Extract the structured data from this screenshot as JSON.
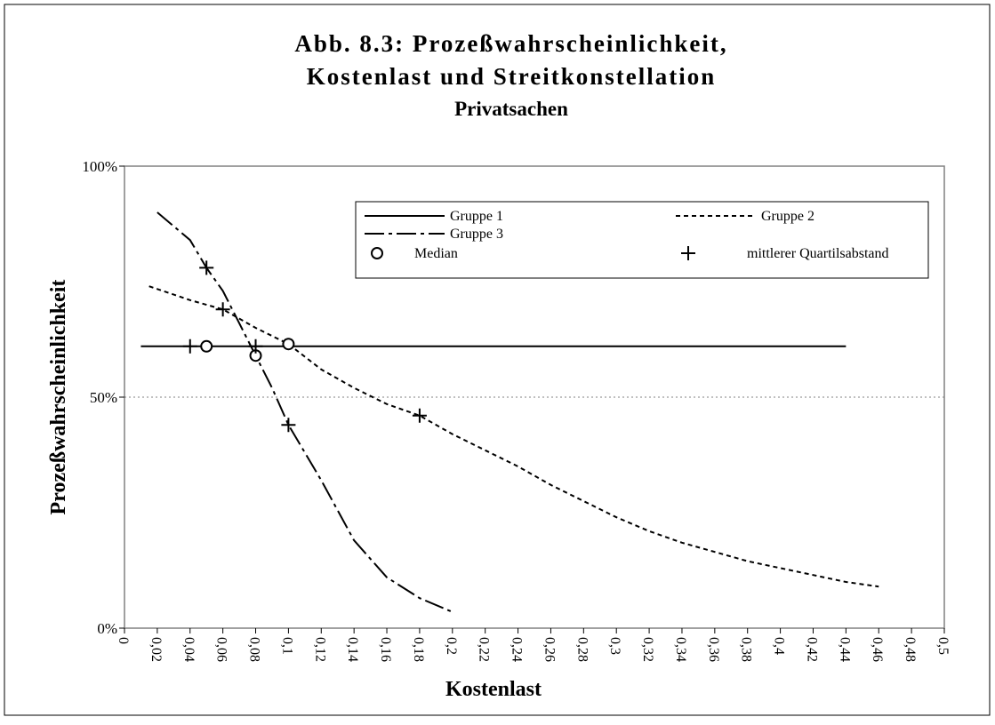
{
  "chart_data": {
    "type": "line",
    "title": "Abb. 8.3: Prozeßwahrscheinlichkeit,",
    "title_line2": "Kostenlast und Streitkonstellation",
    "subtitle": "Privatsachen",
    "x_label": "Kostenlast",
    "y_label": "Prozeßwahrscheinlichkeit",
    "xlim": [
      0,
      0.5
    ],
    "ylim": [
      0,
      100
    ],
    "xticks": [
      {
        "value": 0,
        "label": "0"
      },
      {
        "value": 0.02,
        "label": "0,02"
      },
      {
        "value": 0.04,
        "label": "0,04"
      },
      {
        "value": 0.06,
        "label": "0,06"
      },
      {
        "value": 0.08,
        "label": "0,08"
      },
      {
        "value": 0.1,
        "label": "0,1"
      },
      {
        "value": 0.12,
        "label": "0,12"
      },
      {
        "value": 0.14,
        "label": "0,14"
      },
      {
        "value": 0.16,
        "label": "0,16"
      },
      {
        "value": 0.18,
        "label": "0,18"
      },
      {
        "value": 0.2,
        "label": "0,2"
      },
      {
        "value": 0.22,
        "label": "0,22"
      },
      {
        "value": 0.24,
        "label": "0,24"
      },
      {
        "value": 0.26,
        "label": "0,26"
      },
      {
        "value": 0.28,
        "label": "0,28"
      },
      {
        "value": 0.3,
        "label": "0,3"
      },
      {
        "value": 0.32,
        "label": "0,32"
      },
      {
        "value": 0.34,
        "label": "0,34"
      },
      {
        "value": 0.36,
        "label": "0,36"
      },
      {
        "value": 0.38,
        "label": "0,38"
      },
      {
        "value": 0.4,
        "label": "0,4"
      },
      {
        "value": 0.42,
        "label": "0,42"
      },
      {
        "value": 0.44,
        "label": "0,44"
      },
      {
        "value": 0.46,
        "label": "0,46"
      },
      {
        "value": 0.48,
        "label": "0,48"
      },
      {
        "value": 0.5,
        "label": "0,5"
      }
    ],
    "yticks": [
      {
        "value": 0,
        "label": "0%"
      },
      {
        "value": 50,
        "label": "50%"
      },
      {
        "value": 100,
        "label": "100%"
      }
    ],
    "reference_line": 50,
    "legend": "top-right",
    "series": [
      {
        "name": "Gruppe 1",
        "color": "#000000",
        "dash": "solid",
        "x": [
          0.01,
          0.44
        ],
        "values": [
          61,
          61
        ]
      },
      {
        "name": "Gruppe 2",
        "color": "#000000",
        "dash": "dotted",
        "x": [
          0.015,
          0.04,
          0.06,
          0.08,
          0.1,
          0.12,
          0.14,
          0.16,
          0.18,
          0.2,
          0.22,
          0.24,
          0.26,
          0.28,
          0.3,
          0.32,
          0.34,
          0.36,
          0.38,
          0.4,
          0.42,
          0.44,
          0.46
        ],
        "values": [
          74,
          71,
          69,
          65,
          61.5,
          56,
          52,
          48.5,
          46,
          42,
          38.5,
          35,
          31,
          27.5,
          24,
          21,
          18.5,
          16.5,
          14.5,
          13,
          11.5,
          10,
          9
        ]
      },
      {
        "name": "Gruppe 3",
        "color": "#000000",
        "dash": "dashdot",
        "x": [
          0.02,
          0.04,
          0.05,
          0.06,
          0.07,
          0.08,
          0.09,
          0.1,
          0.12,
          0.14,
          0.16,
          0.18,
          0.2
        ],
        "values": [
          90,
          84,
          78,
          73,
          66,
          59,
          52,
          44,
          32,
          19,
          11,
          6.5,
          3.5
        ]
      },
      {
        "name": "Median",
        "color": "#000000",
        "marker": "circle",
        "x": [
          0.05,
          0.1,
          0.08
        ],
        "values": [
          61,
          61.5,
          59
        ]
      },
      {
        "name": "mittlerer Quartilsabstand",
        "color": "#000000",
        "marker": "plus",
        "x": [
          0.04,
          0.08,
          0.06,
          0.18,
          0.05,
          0.1
        ],
        "values": [
          61,
          61,
          69,
          46,
          78,
          44
        ]
      }
    ]
  }
}
